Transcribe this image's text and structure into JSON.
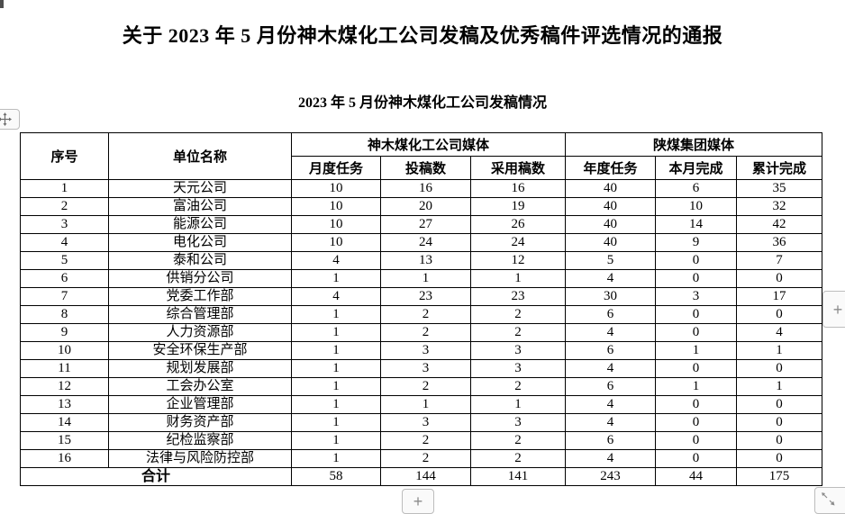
{
  "page": {
    "title": "关于 2023 年 5 月份神木煤化工公司发稿及优秀稿件评选情况的通报",
    "subtitle": "2023 年 5 月份神木煤化工公司发稿情况"
  },
  "table": {
    "columns": {
      "serial": "序号",
      "unit": "单位名称",
      "group_shenmu": "神木煤化工公司媒体",
      "group_shaanxi": "陕煤集团媒体",
      "sub": [
        "月度任务",
        "投稿数",
        "采用稿数",
        "年度任务",
        "本月完成",
        "累计完成"
      ]
    },
    "rows": [
      {
        "no": "1",
        "unit": "天元公司",
        "values": [
          10,
          16,
          16,
          40,
          6,
          35
        ]
      },
      {
        "no": "2",
        "unit": "富油公司",
        "values": [
          10,
          20,
          19,
          40,
          10,
          32
        ]
      },
      {
        "no": "3",
        "unit": "能源公司",
        "values": [
          10,
          27,
          26,
          40,
          14,
          42
        ]
      },
      {
        "no": "4",
        "unit": "电化公司",
        "values": [
          10,
          24,
          24,
          40,
          9,
          36
        ]
      },
      {
        "no": "5",
        "unit": "泰和公司",
        "values": [
          4,
          13,
          12,
          5,
          0,
          7
        ]
      },
      {
        "no": "6",
        "unit": "供销分公司",
        "values": [
          1,
          1,
          1,
          4,
          0,
          0
        ]
      },
      {
        "no": "7",
        "unit": "党委工作部",
        "values": [
          4,
          23,
          23,
          30,
          3,
          17
        ]
      },
      {
        "no": "8",
        "unit": "综合管理部",
        "values": [
          1,
          2,
          2,
          6,
          0,
          0
        ]
      },
      {
        "no": "9",
        "unit": "人力资源部",
        "values": [
          1,
          2,
          2,
          4,
          0,
          4
        ]
      },
      {
        "no": "10",
        "unit": "安全环保生产部",
        "values": [
          1,
          3,
          3,
          6,
          1,
          1
        ]
      },
      {
        "no": "11",
        "unit": "规划发展部",
        "values": [
          1,
          3,
          3,
          4,
          0,
          0
        ]
      },
      {
        "no": "12",
        "unit": "工会办公室",
        "values": [
          1,
          2,
          2,
          6,
          1,
          1
        ]
      },
      {
        "no": "13",
        "unit": "企业管理部",
        "values": [
          1,
          1,
          1,
          4,
          0,
          0
        ]
      },
      {
        "no": "14",
        "unit": "财务资产部",
        "values": [
          1,
          3,
          3,
          4,
          0,
          0
        ]
      },
      {
        "no": "15",
        "unit": "纪检监察部",
        "values": [
          1,
          2,
          2,
          6,
          0,
          0
        ]
      },
      {
        "no": "16",
        "unit": "法律与风险防控部",
        "values": [
          1,
          2,
          2,
          4,
          0,
          0
        ]
      }
    ],
    "total": {
      "label": "合计",
      "values": [
        58,
        144,
        141,
        243,
        44,
        175
      ]
    }
  },
  "controls": {
    "plus_right_label": "+",
    "plus_bottom_label": "+",
    "icons": {
      "move": "table-move-handle-icon",
      "plus": "plus-icon",
      "resize": "diagonal-resize-icon"
    }
  },
  "colors": {
    "table_border": "#000000",
    "control_border": "#bdbdbd",
    "control_background": "#fafafa",
    "control_glyph": "#8c8c8c",
    "text": "#000000",
    "page_background": "#ffffff"
  }
}
